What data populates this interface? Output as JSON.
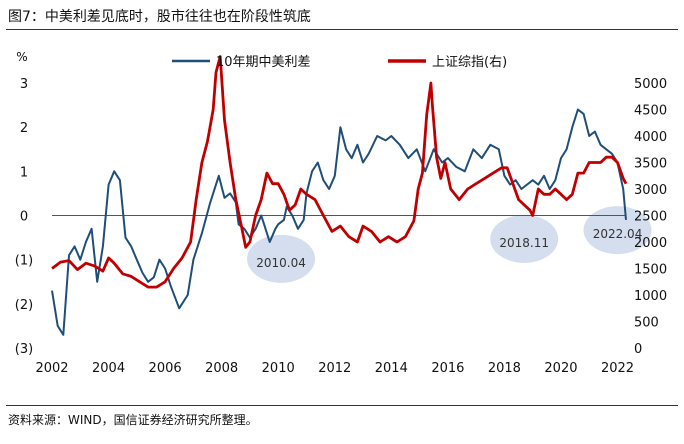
{
  "figure": {
    "title": "图7：中美利差见底时，股市往往也在阶段性筑底",
    "source": "资料来源：WIND，国信证券经济研究所整理。"
  },
  "chart_data": {
    "type": "line",
    "left_axis": {
      "unit_label": "%",
      "ylim": [
        -3,
        3
      ],
      "ticks": [
        3,
        2,
        1,
        0,
        -1,
        -2,
        -3
      ],
      "tick_labels": [
        "3",
        "2",
        "1",
        "0",
        "(1)",
        "(2)",
        "(3)"
      ]
    },
    "right_axis": {
      "ylim": [
        0,
        5000
      ],
      "ticks": [
        5000,
        4500,
        4000,
        3500,
        3000,
        2500,
        2000,
        1500,
        1000,
        500,
        0
      ],
      "tick_labels": [
        "5000",
        "4500",
        "4000",
        "3500",
        "3000",
        "2500",
        "2000",
        "1500",
        "1000",
        "500",
        "0"
      ]
    },
    "x_axis": {
      "xlim": [
        2002,
        2022.3
      ],
      "ticks": [
        2002,
        2004,
        2006,
        2008,
        2010,
        2012,
        2014,
        2016,
        2018,
        2020,
        2022
      ],
      "tick_labels": [
        "2002",
        "2004",
        "2006",
        "2008",
        "2010",
        "2012",
        "2014",
        "2016",
        "2018",
        "2020",
        "2022"
      ]
    },
    "series": [
      {
        "name": "10年期中美利差",
        "axis": "left",
        "color": "#1f4e79",
        "x": [
          2002.0,
          2002.2,
          2002.4,
          2002.6,
          2002.8,
          2003.0,
          2003.2,
          2003.4,
          2003.6,
          2003.8,
          2004.0,
          2004.2,
          2004.4,
          2004.6,
          2004.8,
          2005.0,
          2005.2,
          2005.4,
          2005.6,
          2005.8,
          2006.0,
          2006.2,
          2006.5,
          2006.8,
          2007.0,
          2007.3,
          2007.6,
          2007.9,
          2008.1,
          2008.3,
          2008.5,
          2008.6,
          2008.8,
          2008.9,
          2009.0,
          2009.2,
          2009.4,
          2009.5,
          2009.7,
          2009.9,
          2010.0,
          2010.2,
          2010.3,
          2010.5,
          2010.7,
          2010.9,
          2011.0,
          2011.2,
          2011.4,
          2011.6,
          2011.8,
          2012.0,
          2012.2,
          2012.4,
          2012.6,
          2012.8,
          2013.0,
          2013.2,
          2013.5,
          2013.8,
          2014.0,
          2014.3,
          2014.6,
          2014.9,
          2015.2,
          2015.5,
          2015.8,
          2016.0,
          2016.3,
          2016.6,
          2016.9,
          2017.2,
          2017.5,
          2017.8,
          2018.0,
          2018.2,
          2018.4,
          2018.6,
          2018.8,
          2019.0,
          2019.2,
          2019.4,
          2019.6,
          2019.8,
          2020.0,
          2020.2,
          2020.4,
          2020.6,
          2020.8,
          2021.0,
          2021.2,
          2021.4,
          2021.6,
          2021.8,
          2022.0,
          2022.1,
          2022.2,
          2022.3
        ],
        "values": [
          -1.7,
          -2.5,
          -2.7,
          -0.9,
          -0.7,
          -1.0,
          -0.6,
          -0.3,
          -1.5,
          -0.7,
          0.7,
          1.0,
          0.8,
          -0.5,
          -0.7,
          -1.0,
          -1.3,
          -1.5,
          -1.4,
          -1.0,
          -1.2,
          -1.6,
          -2.1,
          -1.8,
          -1.0,
          -0.4,
          0.3,
          0.9,
          0.4,
          0.5,
          0.3,
          -0.2,
          -0.3,
          -0.4,
          -0.5,
          -0.3,
          0.0,
          -0.2,
          -0.6,
          -0.3,
          -0.2,
          -0.1,
          0.2,
          0.0,
          -0.3,
          -0.1,
          0.5,
          1.0,
          1.2,
          0.8,
          0.6,
          0.9,
          2.0,
          1.5,
          1.3,
          1.6,
          1.2,
          1.4,
          1.8,
          1.7,
          1.8,
          1.6,
          1.3,
          1.5,
          1.0,
          1.5,
          1.2,
          1.3,
          1.1,
          1.0,
          1.5,
          1.3,
          1.6,
          1.5,
          0.9,
          0.7,
          0.8,
          0.6,
          0.7,
          0.8,
          0.7,
          0.9,
          0.6,
          0.8,
          1.3,
          1.5,
          2.0,
          2.4,
          2.3,
          1.8,
          1.9,
          1.6,
          1.5,
          1.4,
          1.2,
          0.9,
          0.6,
          -0.1
        ]
      },
      {
        "name": "上证综指(右)",
        "axis": "right",
        "color": "#c00000",
        "x": [
          2002.0,
          2002.3,
          2002.6,
          2002.9,
          2003.2,
          2003.5,
          2003.8,
          2004.0,
          2004.2,
          2004.5,
          2004.8,
          2005.1,
          2005.4,
          2005.7,
          2006.0,
          2006.3,
          2006.6,
          2006.9,
          2007.1,
          2007.3,
          2007.5,
          2007.7,
          2007.8,
          2007.95,
          2008.1,
          2008.3,
          2008.5,
          2008.7,
          2008.85,
          2009.0,
          2009.2,
          2009.4,
          2009.6,
          2009.8,
          2010.0,
          2010.2,
          2010.4,
          2010.6,
          2010.8,
          2011.0,
          2011.3,
          2011.6,
          2011.9,
          2012.2,
          2012.5,
          2012.8,
          2013.0,
          2013.3,
          2013.6,
          2013.9,
          2014.2,
          2014.5,
          2014.8,
          2014.95,
          2015.1,
          2015.25,
          2015.4,
          2015.45,
          2015.6,
          2015.75,
          2015.9,
          2016.1,
          2016.4,
          2016.7,
          2017.0,
          2017.3,
          2017.6,
          2017.9,
          2018.1,
          2018.3,
          2018.5,
          2018.7,
          2018.9,
          2019.0,
          2019.2,
          2019.4,
          2019.6,
          2019.8,
          2020.0,
          2020.2,
          2020.4,
          2020.6,
          2020.8,
          2021.0,
          2021.2,
          2021.4,
          2021.6,
          2021.8,
          2022.0,
          2022.2,
          2022.3
        ],
        "values": [
          1500,
          1620,
          1650,
          1480,
          1600,
          1550,
          1450,
          1700,
          1600,
          1400,
          1350,
          1250,
          1150,
          1150,
          1250,
          1500,
          1700,
          2000,
          2800,
          3500,
          3900,
          4500,
          5200,
          5500,
          4300,
          3500,
          2800,
          2300,
          1900,
          2000,
          2500,
          2800,
          3300,
          3100,
          3100,
          2900,
          2600,
          2700,
          3000,
          2900,
          2800,
          2500,
          2200,
          2300,
          2100,
          2000,
          2300,
          2200,
          2000,
          2100,
          2000,
          2100,
          2400,
          3000,
          3300,
          4400,
          5000,
          4600,
          3600,
          3200,
          3500,
          3000,
          2800,
          3000,
          3100,
          3200,
          3300,
          3400,
          3400,
          3100,
          2800,
          2700,
          2600,
          2500,
          3000,
          2900,
          2900,
          3000,
          2900,
          2800,
          2900,
          3300,
          3300,
          3500,
          3500,
          3500,
          3600,
          3600,
          3500,
          3200,
          3100
        ]
      }
    ],
    "annotations": [
      {
        "label": "2010.04",
        "x": 2010.1,
        "y": -0.8
      },
      {
        "label": "2018.11",
        "x": 2018.7,
        "y": -0.35
      },
      {
        "label": "2022.04",
        "x": 2022.0,
        "y": -0.15
      }
    ]
  }
}
